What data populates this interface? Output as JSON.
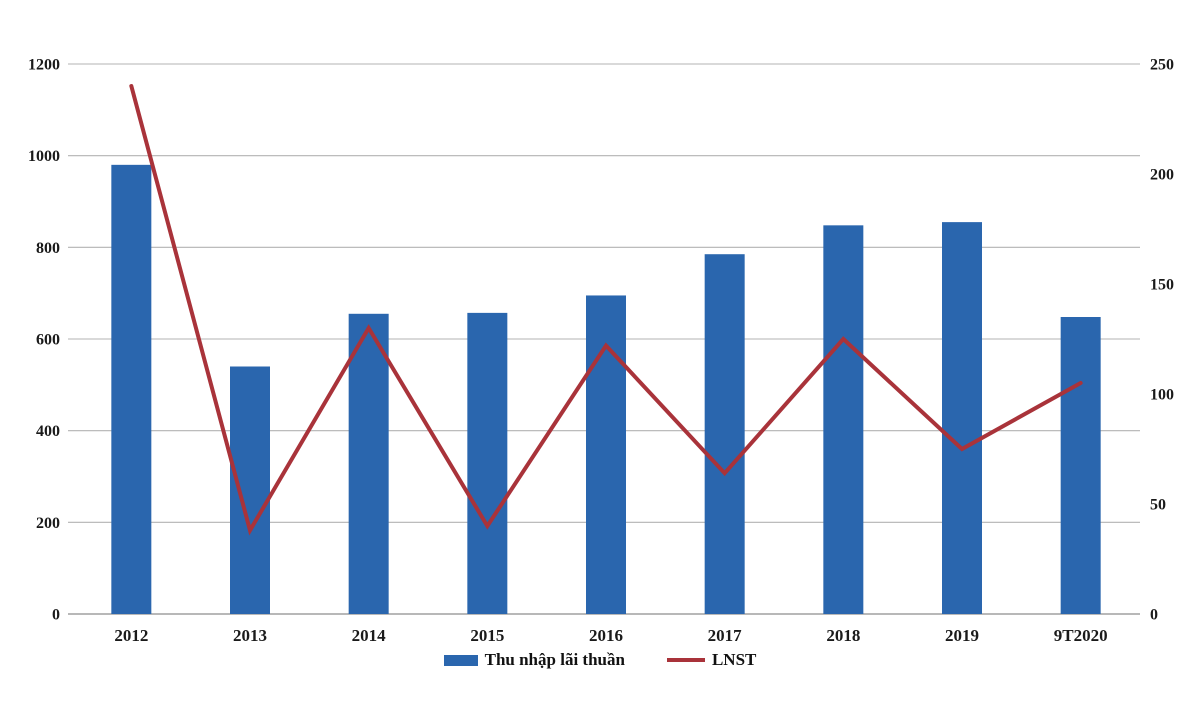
{
  "chart_data": {
    "type": "combo-bar-line",
    "title": "",
    "categories": [
      "2012",
      "2013",
      "2014",
      "2015",
      "2016",
      "2017",
      "2018",
      "2019",
      "9T2020"
    ],
    "series": [
      {
        "name": "Thu nhập lãi thuần",
        "type": "bar",
        "axis": "left",
        "color": "#2a66ae",
        "values": [
          980,
          540,
          655,
          657,
          695,
          785,
          848,
          855,
          648
        ]
      },
      {
        "name": "LNST",
        "type": "line",
        "axis": "right",
        "color": "#a9333a",
        "values": [
          240,
          38,
          130,
          40,
          122,
          64,
          125,
          75,
          105
        ]
      }
    ],
    "left_axis": {
      "min": 0,
      "max": 1200,
      "step": 200,
      "ticks": [
        0,
        200,
        400,
        600,
        800,
        1000,
        1200
      ]
    },
    "right_axis": {
      "min": 0,
      "max": 250,
      "step": 50,
      "ticks": [
        0,
        50,
        100,
        150,
        200,
        250
      ]
    },
    "grid": true,
    "legend_position": "bottom-center",
    "colors": {
      "background": "#ffffff",
      "grid": "#b3b3b3",
      "axis_line": "#a0a0a0",
      "tick_text": "#1a1a1a"
    }
  }
}
